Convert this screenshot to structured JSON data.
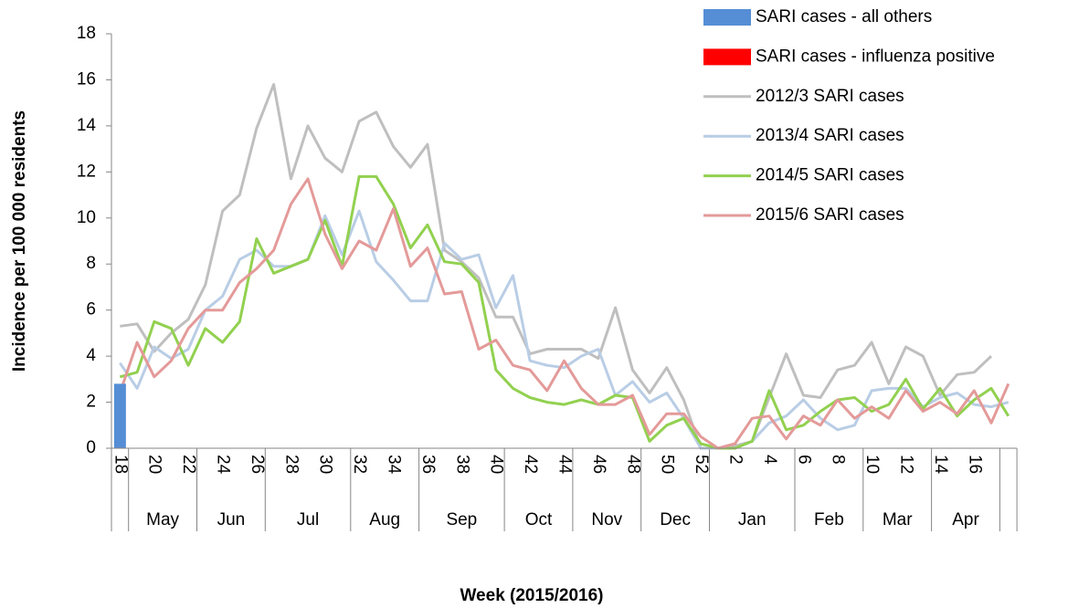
{
  "chart_data": {
    "type": "bar",
    "y_label": "Incidence per 100 000 residents",
    "x_label": "Week (2015/2016)",
    "ylim": [
      0,
      18
    ],
    "yticks": [
      0,
      2,
      4,
      6,
      8,
      10,
      12,
      14,
      16,
      18
    ],
    "categories": [
      "18",
      null,
      "20",
      null,
      "22",
      null,
      "24",
      null,
      "26",
      null,
      "28",
      null,
      "30",
      null,
      "32",
      null,
      "34",
      null,
      "36",
      null,
      "38",
      null,
      "40",
      null,
      "42",
      null,
      "44",
      null,
      "46",
      null,
      "48",
      null,
      "50",
      null,
      "52",
      null,
      "2",
      null,
      "4",
      null,
      "6",
      null,
      "8",
      null,
      "10",
      null,
      "12",
      null,
      "14",
      null,
      "16",
      null,
      null
    ],
    "month_groups": [
      {
        "label": null,
        "span": 1
      },
      {
        "label": "May",
        "span": 4
      },
      {
        "label": "Jun",
        "span": 4
      },
      {
        "label": "Jul",
        "span": 5
      },
      {
        "label": "Aug",
        "span": 4
      },
      {
        "label": "Sep",
        "span": 5
      },
      {
        "label": "Oct",
        "span": 4
      },
      {
        "label": "Nov",
        "span": 4
      },
      {
        "label": "Dec",
        "span": 4
      },
      {
        "label": "Jan",
        "span": 5
      },
      {
        "label": "Feb",
        "span": 4
      },
      {
        "label": "Mar",
        "span": 4
      },
      {
        "label": "Apr",
        "span": 4
      },
      {
        "label": null,
        "span": 1
      }
    ],
    "series": [
      {
        "name": "SARI cases - all others",
        "type": "bar",
        "color": "#558ed5",
        "values": [
          2.8,
          null,
          null,
          null,
          null,
          null,
          null,
          null,
          null,
          null,
          null,
          null,
          null,
          null,
          null,
          null,
          null,
          null,
          null,
          null,
          null,
          null,
          null,
          null,
          null,
          null,
          null,
          null,
          null,
          null,
          null,
          null,
          null,
          null,
          null,
          null,
          null,
          null,
          null,
          null,
          null,
          null,
          null,
          null,
          null,
          null,
          null,
          null,
          null,
          null,
          null,
          null,
          null
        ]
      },
      {
        "name": "SARI cases - influenza positive",
        "type": "bar",
        "color": "#ff0000",
        "values": [
          null,
          null,
          null,
          null,
          null,
          null,
          null,
          null,
          null,
          null,
          null,
          null,
          null,
          null,
          null,
          null,
          null,
          null,
          null,
          null,
          null,
          null,
          null,
          null,
          null,
          null,
          null,
          null,
          null,
          null,
          null,
          null,
          null,
          null,
          null,
          null,
          null,
          null,
          null,
          null,
          null,
          null,
          null,
          null,
          null,
          null,
          null,
          null,
          null,
          null,
          null,
          null,
          null
        ]
      },
      {
        "name": "2012/3 SARI cases",
        "type": "line",
        "color": "#bfbfbf",
        "values": [
          5.3,
          5.4,
          4.2,
          5.0,
          5.6,
          7.1,
          10.3,
          11.0,
          13.9,
          15.8,
          11.7,
          14.0,
          12.6,
          12.0,
          14.2,
          14.6,
          13.1,
          12.2,
          13.2,
          8.6,
          8.1,
          7.4,
          5.7,
          5.7,
          4.1,
          4.3,
          4.3,
          4.3,
          3.9,
          6.1,
          3.4,
          2.4,
          3.5,
          2.1,
          0,
          0,
          0.1,
          0.3,
          2.2,
          4.1,
          2.3,
          2.2,
          3.4,
          3.6,
          4.6,
          2.8,
          4.4,
          4.0,
          2.3,
          3.2,
          3.3,
          4.0,
          null
        ]
      },
      {
        "name": "2013/4 SARI cases",
        "type": "line",
        "color": "#b9cde5",
        "values": [
          3.7,
          2.6,
          4.4,
          3.9,
          4.3,
          6.0,
          6.6,
          8.2,
          8.6,
          7.9,
          7.9,
          8.2,
          10.1,
          8.4,
          10.3,
          8.1,
          7.3,
          6.4,
          6.4,
          8.9,
          8.2,
          8.4,
          6.1,
          7.5,
          3.8,
          3.6,
          3.5,
          4.0,
          4.3,
          2.3,
          2.9,
          2.0,
          2.4,
          1.3,
          0,
          0,
          0,
          0.3,
          1.1,
          1.4,
          2.1,
          1.3,
          0.8,
          1.0,
          2.5,
          2.6,
          2.6,
          1.8,
          2.2,
          2.4,
          1.9,
          1.8,
          2.0
        ]
      },
      {
        "name": "2014/5 SARI cases",
        "type": "line",
        "color": "#92d050",
        "values": [
          3.1,
          3.3,
          5.5,
          5.2,
          3.6,
          5.2,
          4.6,
          5.5,
          9.1,
          7.6,
          7.9,
          8.2,
          9.9,
          7.9,
          11.8,
          11.8,
          10.6,
          8.7,
          9.7,
          8.1,
          8.0,
          7.2,
          3.4,
          2.6,
          2.2,
          2.0,
          1.9,
          2.1,
          1.9,
          2.3,
          2.2,
          0.3,
          1.0,
          1.3,
          0.2,
          0,
          0,
          0.3,
          2.5,
          0.8,
          1.0,
          1.6,
          2.1,
          2.2,
          1.6,
          1.9,
          3.0,
          1.7,
          2.6,
          1.4,
          2.1,
          2.6,
          1.4
        ]
      },
      {
        "name": "2015/6 SARI cases",
        "type": "line",
        "color": "#e39a99",
        "values": [
          2.4,
          4.6,
          3.1,
          3.8,
          5.2,
          6.0,
          6.0,
          7.2,
          7.8,
          8.6,
          10.6,
          11.7,
          9.3,
          7.8,
          9.0,
          8.6,
          10.4,
          7.9,
          8.7,
          6.7,
          6.8,
          4.3,
          4.7,
          3.6,
          3.4,
          2.5,
          3.8,
          2.6,
          1.9,
          1.9,
          2.3,
          0.6,
          1.5,
          1.5,
          0.5,
          0,
          0.2,
          1.3,
          1.4,
          0.4,
          1.4,
          1.0,
          2.1,
          1.3,
          1.8,
          1.3,
          2.5,
          1.6,
          2.0,
          1.5,
          2.5,
          1.1,
          2.8
        ]
      }
    ]
  }
}
